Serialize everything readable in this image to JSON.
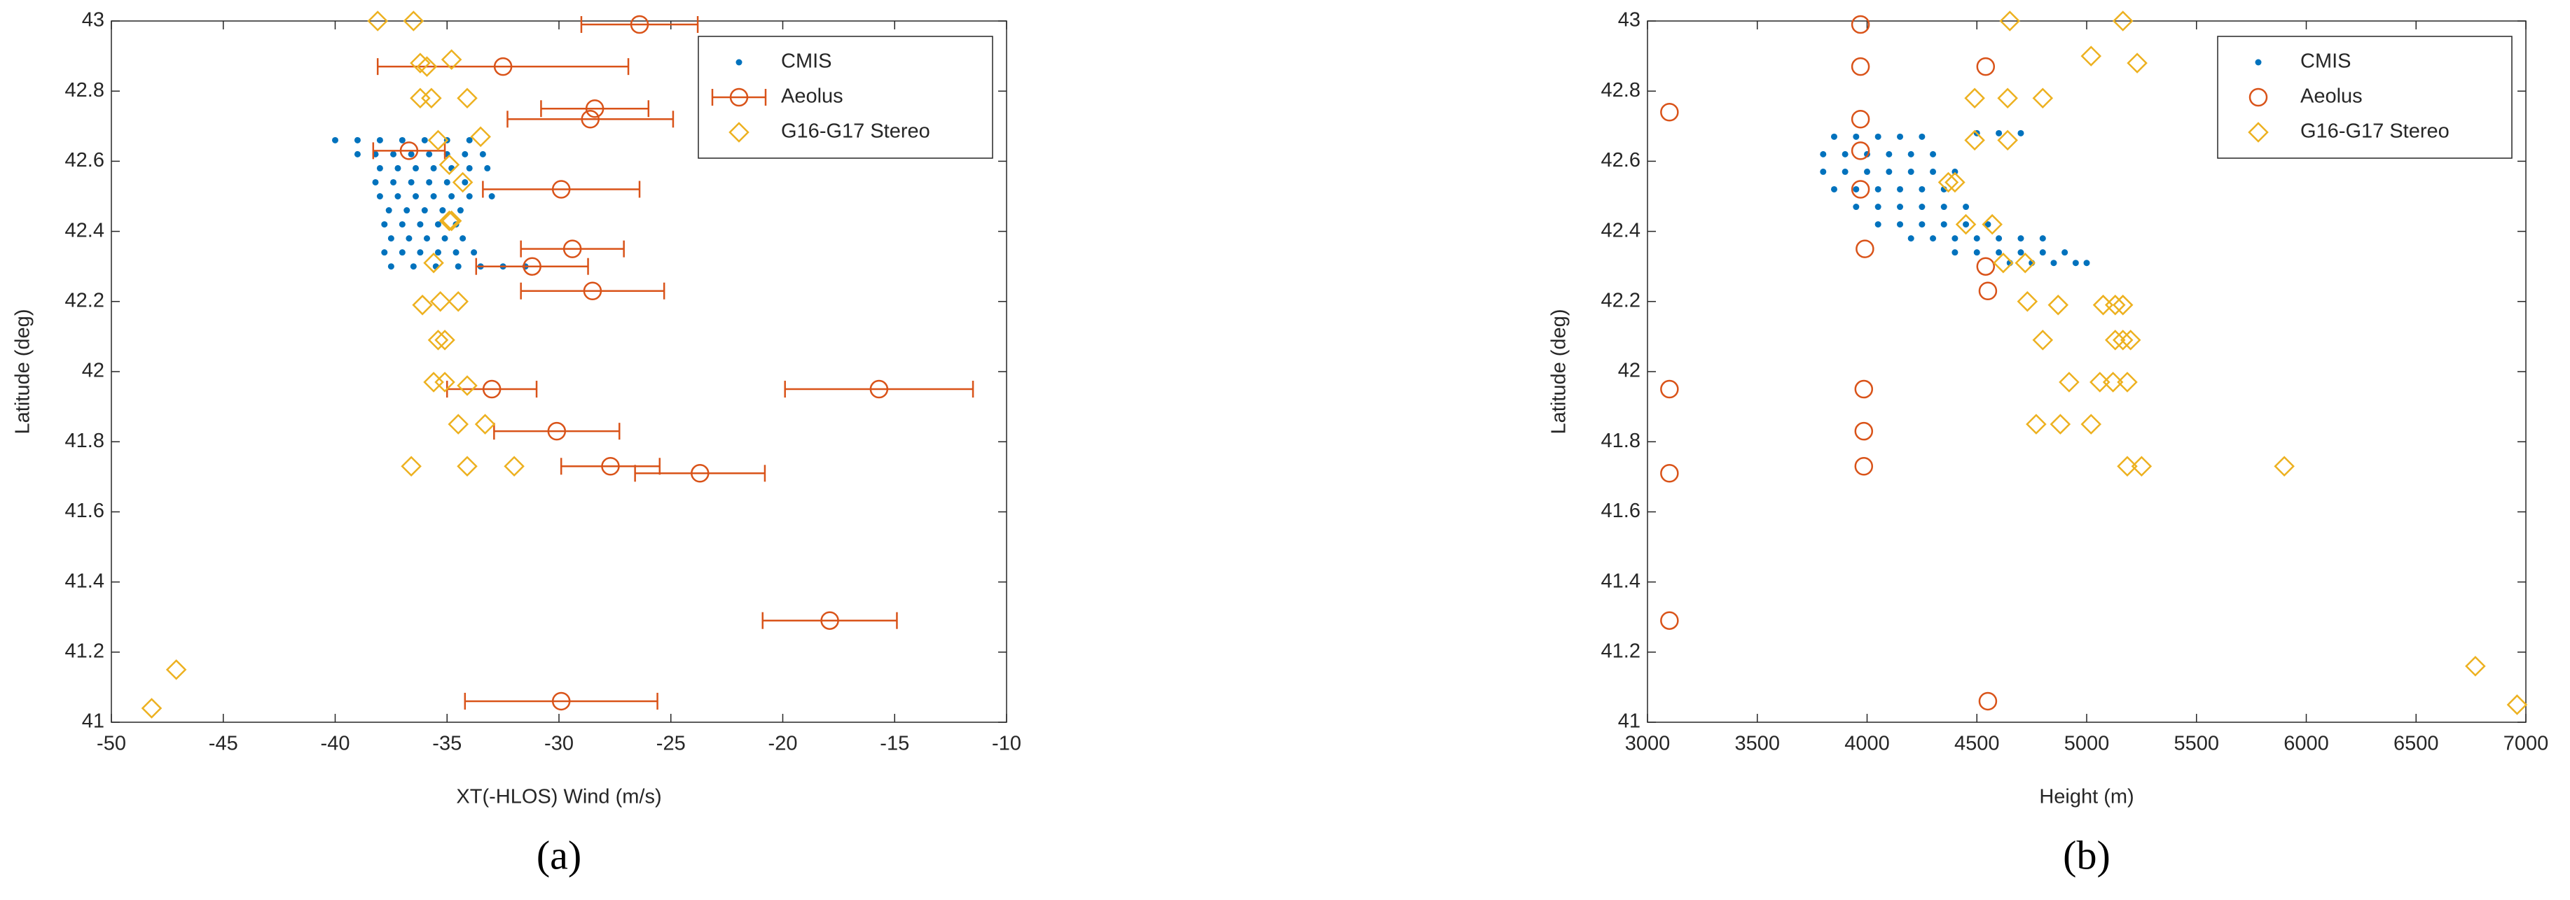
{
  "chart_data": [
    {
      "type": "scatter",
      "caption": "(a)",
      "xlabel": "XT(-HLOS) Wind (m/s)",
      "ylabel": "Latitude (deg)",
      "xlim": [
        -50,
        -10
      ],
      "ylim": [
        41,
        43
      ],
      "xticks": [
        -50,
        -45,
        -40,
        -35,
        -30,
        -25,
        -20,
        -15,
        -10
      ],
      "yticks": [
        41,
        41.2,
        41.4,
        41.6,
        41.8,
        42,
        42.2,
        42.4,
        42.6,
        42.8,
        43
      ],
      "legend": "upper right",
      "series": [
        {
          "name": "CMIS",
          "color": "#0072BD",
          "marker": "dot",
          "x": [
            -40.0,
            -39.0,
            -38.0,
            -37.0,
            -36.0,
            -35.0,
            -34.0,
            -39.0,
            -38.2,
            -37.4,
            -36.6,
            -35.8,
            -35.0,
            -34.2,
            -33.4,
            -38.0,
            -37.2,
            -36.4,
            -35.6,
            -34.8,
            -34.0,
            -33.2,
            -38.2,
            -37.4,
            -36.6,
            -35.8,
            -35.0,
            -34.2,
            -38.0,
            -37.2,
            -36.4,
            -35.6,
            -34.8,
            -34.0,
            -33.0,
            -37.6,
            -36.8,
            -36.0,
            -35.2,
            -34.4,
            -37.8,
            -37.0,
            -36.2,
            -35.4,
            -34.6,
            -37.5,
            -36.7,
            -35.9,
            -35.1,
            -34.3,
            -37.8,
            -37.0,
            -36.2,
            -35.4,
            -34.6,
            -33.8,
            -37.5,
            -36.5,
            -35.5,
            -34.5,
            -33.5,
            -32.5,
            -31.5
          ],
          "values": [
            42.66,
            42.66,
            42.66,
            42.66,
            42.66,
            42.66,
            42.66,
            42.62,
            42.62,
            42.62,
            42.62,
            42.62,
            42.62,
            42.62,
            42.62,
            42.58,
            42.58,
            42.58,
            42.58,
            42.58,
            42.58,
            42.58,
            42.54,
            42.54,
            42.54,
            42.54,
            42.54,
            42.54,
            42.5,
            42.5,
            42.5,
            42.5,
            42.5,
            42.5,
            42.5,
            42.46,
            42.46,
            42.46,
            42.46,
            42.46,
            42.42,
            42.42,
            42.42,
            42.42,
            42.42,
            42.38,
            42.38,
            42.38,
            42.38,
            42.38,
            42.34,
            42.34,
            42.34,
            42.34,
            42.34,
            42.34,
            42.3,
            42.3,
            42.3,
            42.3,
            42.3,
            42.3,
            42.3
          ]
        },
        {
          "name": "Aeolus",
          "color": "#D95319",
          "marker": "circle",
          "x": [
            -26.4,
            -32.5,
            -28.4,
            -28.6,
            -36.7,
            -29.9,
            -29.4,
            -31.2,
            -28.5,
            -15.7,
            -33.0,
            -30.1,
            -27.7,
            -23.7,
            -17.9,
            -29.9
          ],
          "values": [
            42.99,
            42.87,
            42.75,
            42.72,
            42.63,
            42.52,
            42.35,
            42.3,
            42.23,
            41.95,
            41.95,
            41.83,
            41.73,
            41.71,
            41.29,
            41.06
          ],
          "errors": [
            2.6,
            5.6,
            2.4,
            3.7,
            1.6,
            3.5,
            2.3,
            2.5,
            3.2,
            4.2,
            2.0,
            2.8,
            2.2,
            2.9,
            3.0,
            4.3
          ]
        },
        {
          "name": "G16-G17 Stereo",
          "color": "#EDB120",
          "marker": "diamond",
          "x": [
            -38.1,
            -36.5,
            -34.8,
            -36.2,
            -35.9,
            -36.2,
            -35.7,
            -34.1,
            -35.4,
            -33.5,
            -34.9,
            -34.3,
            -34.8,
            -34.9,
            -35.6,
            -36.1,
            -35.3,
            -34.5,
            -35.4,
            -35.1,
            -35.6,
            -35.1,
            -34.1,
            -34.5,
            -33.3,
            -36.6,
            -34.1,
            -32.0,
            -47.1,
            -48.2
          ],
          "values": [
            43.0,
            43.0,
            42.89,
            42.88,
            42.87,
            42.78,
            42.78,
            42.78,
            42.66,
            42.67,
            42.59,
            42.54,
            42.43,
            42.43,
            42.31,
            42.19,
            42.2,
            42.2,
            42.09,
            42.09,
            41.97,
            41.97,
            41.96,
            41.85,
            41.85,
            41.73,
            41.73,
            41.73,
            41.15,
            41.04
          ]
        }
      ]
    },
    {
      "type": "scatter",
      "caption": "(b)",
      "xlabel": "Height (m)",
      "ylabel": "Latitude (deg)",
      "xlim": [
        3000,
        7000
      ],
      "ylim": [
        41,
        43
      ],
      "xticks": [
        3000,
        3500,
        4000,
        4500,
        5000,
        5500,
        6000,
        6500,
        7000
      ],
      "yticks": [
        41,
        41.2,
        41.4,
        41.6,
        41.8,
        42,
        42.2,
        42.4,
        42.6,
        42.8,
        43
      ],
      "legend": "upper right",
      "series": [
        {
          "name": "CMIS",
          "color": "#0072BD",
          "marker": "dot",
          "x": [
            3850,
            3950,
            4050,
            4150,
            4250,
            4500,
            4600,
            4700,
            3800,
            3900,
            4000,
            4100,
            4200,
            4300,
            3800,
            3900,
            4000,
            4100,
            4200,
            4300,
            4400,
            3850,
            3950,
            4050,
            4150,
            4250,
            4350,
            3950,
            4050,
            4150,
            4250,
            4350,
            4450,
            4050,
            4150,
            4250,
            4350,
            4450,
            4550,
            4200,
            4300,
            4400,
            4500,
            4600,
            4700,
            4800,
            4400,
            4500,
            4600,
            4700,
            4800,
            4900,
            4650,
            4750,
            4850,
            4950,
            5000
          ],
          "values": [
            42.67,
            42.67,
            42.67,
            42.67,
            42.67,
            42.68,
            42.68,
            42.68,
            42.62,
            42.62,
            42.62,
            42.62,
            42.62,
            42.62,
            42.57,
            42.57,
            42.57,
            42.57,
            42.57,
            42.57,
            42.57,
            42.52,
            42.52,
            42.52,
            42.52,
            42.52,
            42.52,
            42.47,
            42.47,
            42.47,
            42.47,
            42.47,
            42.47,
            42.42,
            42.42,
            42.42,
            42.42,
            42.42,
            42.42,
            42.38,
            42.38,
            42.38,
            42.38,
            42.38,
            42.38,
            42.38,
            42.34,
            42.34,
            42.34,
            42.34,
            42.34,
            42.34,
            42.31,
            42.31,
            42.31,
            42.31,
            42.31
          ]
        },
        {
          "name": "Aeolus",
          "color": "#D95319",
          "marker": "circle",
          "x": [
            3970,
            3970,
            4540,
            3100,
            3970,
            3970,
            3970,
            3990,
            4540,
            4550,
            3985,
            3100,
            3985,
            3985,
            3100,
            3100,
            4550
          ],
          "values": [
            42.99,
            42.87,
            42.87,
            42.74,
            42.72,
            42.63,
            42.52,
            42.35,
            42.3,
            42.23,
            41.95,
            41.95,
            41.83,
            41.73,
            41.71,
            41.29,
            41.06
          ]
        },
        {
          "name": "G16-G17 Stereo",
          "color": "#EDB120",
          "marker": "diamond",
          "x": [
            4650,
            5165,
            5020,
            5230,
            4490,
            4640,
            4800,
            4490,
            4640,
            4370,
            4400,
            4450,
            4570,
            4620,
            4720,
            4730,
            4870,
            5075,
            5130,
            5165,
            4800,
            5130,
            5165,
            5200,
            4920,
            5060,
            5120,
            5185,
            4770,
            4880,
            5020,
            5185,
            5250,
            5900,
            6770,
            6960
          ],
          "values": [
            43.0,
            43.0,
            42.9,
            42.88,
            42.78,
            42.78,
            42.78,
            42.66,
            42.66,
            42.54,
            42.54,
            42.42,
            42.42,
            42.31,
            42.31,
            42.2,
            42.19,
            42.19,
            42.19,
            42.19,
            42.09,
            42.09,
            42.09,
            42.09,
            41.97,
            41.97,
            41.97,
            41.97,
            41.85,
            41.85,
            41.85,
            41.73,
            41.73,
            41.73,
            41.16,
            41.05
          ]
        }
      ]
    }
  ]
}
